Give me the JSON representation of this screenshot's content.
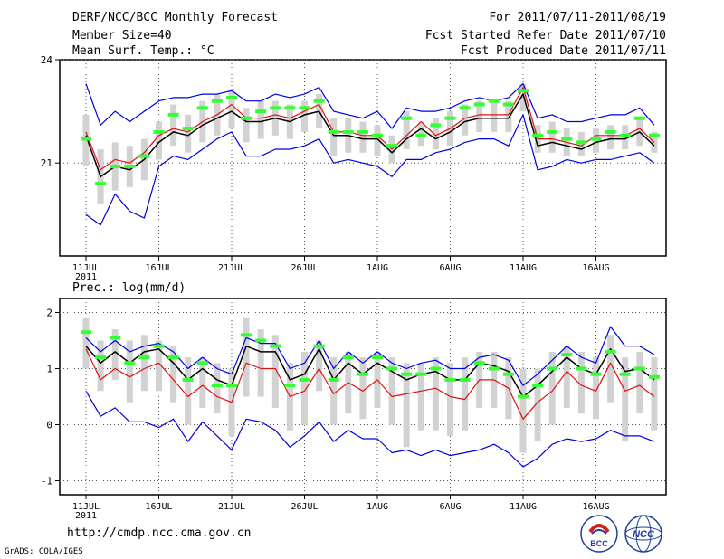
{
  "header": {
    "title": "DERF/NCC/BCC Monthly Forecast",
    "member_size": "Member Size=40",
    "variable": "Mean Surf. Temp.: °C",
    "period": "For 2011/07/11-2011/08/19",
    "started": "Fcst Started Refer Date 2011/07/10",
    "produced": "Fcst Produced Date 2011/07/11"
  },
  "footer": {
    "url": "http://cmdp.ncc.cma.gov.cn",
    "credit": "GrADS: COLA/IGES",
    "logo_left_text": "BCC",
    "logo_right_text": "NCC"
  },
  "colors": {
    "box": "#d2d2d2",
    "green": "#33ff33",
    "red": "#e01010",
    "blue": "#0000e0",
    "black": "#000000",
    "grid": "#555555"
  },
  "chart_data": [
    {
      "type": "line",
      "title": "Mean Surf. Temp.: °C",
      "ylim": [
        18.3,
        24
      ],
      "yticks": [
        21,
        24
      ],
      "xticks": [
        "11JUL",
        "16JUL",
        "21JUL",
        "26JUL",
        "1AUG",
        "6AUG",
        "11AUG",
        "16AUG"
      ],
      "xtick_year": "2011",
      "x": "days 0-39 from 2011-07-11",
      "series": [
        {
          "name": "mean",
          "color": "black",
          "values": [
            21.8,
            20.6,
            20.9,
            20.8,
            21.1,
            21.6,
            21.9,
            21.8,
            22.1,
            22.3,
            22.5,
            22.2,
            22.2,
            22.3,
            22.2,
            22.4,
            22.5,
            21.8,
            21.8,
            21.7,
            21.7,
            21.3,
            21.7,
            22.0,
            21.7,
            21.9,
            22.2,
            22.3,
            22.3,
            22.3,
            23.0,
            21.5,
            21.6,
            21.5,
            21.4,
            21.6,
            21.7,
            21.7,
            21.9,
            21.5
          ]
        },
        {
          "name": "red",
          "color": "red",
          "values": [
            21.9,
            20.8,
            21.1,
            21.0,
            21.3,
            21.8,
            22.0,
            21.9,
            22.2,
            22.4,
            22.7,
            22.3,
            22.3,
            22.4,
            22.3,
            22.5,
            22.7,
            21.9,
            21.9,
            21.8,
            21.8,
            21.4,
            21.8,
            22.2,
            21.8,
            22.0,
            22.3,
            22.4,
            22.4,
            22.4,
            23.2,
            21.7,
            21.7,
            21.6,
            21.5,
            21.8,
            21.8,
            21.8,
            22.0,
            21.6
          ]
        },
        {
          "name": "blue-upper",
          "color": "blue",
          "values": [
            23.3,
            22.1,
            22.5,
            22.2,
            22.5,
            22.8,
            22.9,
            22.9,
            23.0,
            23.0,
            23.1,
            22.8,
            22.8,
            23.0,
            22.9,
            23.0,
            23.2,
            22.5,
            22.4,
            22.3,
            22.5,
            22.0,
            22.6,
            22.5,
            22.5,
            22.6,
            22.8,
            22.9,
            22.8,
            22.9,
            23.3,
            22.3,
            22.4,
            22.2,
            22.2,
            22.3,
            22.4,
            22.4,
            22.6,
            22.1
          ]
        },
        {
          "name": "blue-lower",
          "color": "blue",
          "values": [
            19.5,
            19.2,
            20.1,
            19.6,
            19.4,
            20.9,
            21.2,
            21.1,
            21.4,
            21.7,
            21.9,
            21.2,
            21.2,
            21.4,
            21.4,
            21.5,
            21.7,
            21.0,
            21.1,
            21.0,
            20.9,
            20.6,
            21.1,
            21.1,
            21.3,
            21.4,
            21.6,
            21.7,
            21.7,
            21.5,
            22.4,
            20.8,
            20.9,
            21.1,
            21.0,
            21.1,
            21.1,
            21.2,
            21.3,
            21.0
          ]
        },
        {
          "name": "green-marker",
          "color": "green",
          "values": [
            21.7,
            20.4,
            20.9,
            20.9,
            21.2,
            21.9,
            22.4,
            22.0,
            22.6,
            22.8,
            22.9,
            22.3,
            22.5,
            22.6,
            22.6,
            22.6,
            22.8,
            21.9,
            21.9,
            21.9,
            21.8,
            21.5,
            22.3,
            21.8,
            22.1,
            22.3,
            22.6,
            22.7,
            22.8,
            22.7,
            23.1,
            21.8,
            21.9,
            21.7,
            21.6,
            21.7,
            21.9,
            21.8,
            22.3,
            21.8
          ]
        },
        {
          "name": "box-top",
          "color": "gray",
          "values": [
            22.4,
            21.4,
            21.6,
            21.5,
            21.7,
            22.2,
            22.7,
            22.4,
            22.8,
            23.0,
            23.1,
            22.6,
            22.8,
            22.8,
            22.7,
            22.8,
            23.0,
            22.3,
            22.3,
            22.2,
            22.1,
            21.8,
            22.5,
            22.2,
            22.3,
            22.5,
            22.7,
            22.8,
            22.8,
            22.8,
            23.3,
            22.1,
            22.2,
            22.0,
            21.9,
            22.0,
            22.1,
            22.1,
            22.3,
            21.9
          ]
        },
        {
          "name": "box-bottom",
          "color": "gray",
          "values": [
            20.9,
            19.8,
            20.2,
            20.3,
            20.5,
            21.1,
            21.5,
            21.3,
            21.6,
            21.8,
            22.0,
            21.6,
            21.7,
            21.8,
            21.7,
            21.9,
            22.0,
            21.2,
            21.3,
            21.3,
            21.2,
            21.0,
            21.4,
            21.5,
            21.4,
            21.5,
            21.8,
            21.9,
            21.9,
            21.9,
            22.5,
            21.3,
            21.3,
            21.2,
            21.2,
            21.3,
            21.4,
            21.4,
            21.5,
            21.3
          ]
        }
      ]
    },
    {
      "type": "line",
      "title": "Prec.: log(mm/d)",
      "ylim": [
        -1.25,
        2.25
      ],
      "yticks": [
        -1,
        0,
        1,
        2
      ],
      "xticks": [
        "11JUL",
        "16JUL",
        "21JUL",
        "26JUL",
        "1AUG",
        "6AUG",
        "11AUG",
        "16AUG"
      ],
      "xtick_year": "2011",
      "x": "days 0-39 from 2011-07-11",
      "series": [
        {
          "name": "mean",
          "color": "black",
          "values": [
            1.4,
            1.1,
            1.3,
            1.1,
            1.3,
            1.35,
            1.1,
            0.8,
            1.0,
            0.8,
            0.7,
            1.4,
            1.3,
            1.3,
            0.8,
            0.9,
            1.35,
            0.8,
            1.1,
            0.9,
            1.1,
            0.95,
            0.8,
            0.9,
            0.95,
            0.8,
            0.8,
            1.1,
            1.05,
            0.95,
            0.5,
            0.7,
            0.95,
            1.2,
            1.0,
            0.9,
            1.35,
            0.95,
            1.0,
            0.8
          ]
        },
        {
          "name": "red",
          "color": "red",
          "values": [
            1.35,
            0.8,
            1.0,
            0.85,
            1.0,
            1.1,
            0.8,
            0.5,
            0.7,
            0.5,
            0.4,
            1.1,
            1.0,
            1.0,
            0.5,
            0.6,
            1.0,
            0.55,
            0.75,
            0.6,
            0.8,
            0.5,
            0.55,
            0.6,
            0.65,
            0.5,
            0.45,
            0.8,
            0.8,
            0.65,
            0.1,
            0.4,
            0.6,
            0.95,
            0.7,
            0.6,
            1.1,
            0.6,
            0.7,
            0.5
          ]
        },
        {
          "name": "blue-upper",
          "color": "blue",
          "values": [
            1.55,
            1.3,
            1.5,
            1.3,
            1.4,
            1.45,
            1.3,
            1.0,
            1.2,
            1.0,
            0.9,
            1.55,
            1.45,
            1.45,
            1.0,
            1.1,
            1.5,
            1.0,
            1.3,
            1.1,
            1.3,
            1.1,
            1.0,
            1.1,
            1.15,
            1.0,
            1.0,
            1.2,
            1.25,
            1.15,
            0.7,
            0.9,
            1.15,
            1.4,
            1.2,
            1.1,
            1.75,
            1.4,
            1.4,
            1.25
          ]
        },
        {
          "name": "blue-lower",
          "color": "blue",
          "values": [
            0.6,
            0.15,
            0.3,
            0.05,
            0.05,
            -0.05,
            0.1,
            -0.3,
            0.05,
            -0.2,
            -0.45,
            0.1,
            0.05,
            -0.1,
            -0.4,
            -0.2,
            0.05,
            -0.3,
            -0.1,
            -0.25,
            -0.25,
            -0.5,
            -0.45,
            -0.55,
            -0.45,
            -0.55,
            -0.5,
            -0.45,
            -0.35,
            -0.5,
            -0.75,
            -0.6,
            -0.35,
            -0.25,
            -0.3,
            -0.25,
            -0.1,
            -0.2,
            -0.2,
            -0.3
          ]
        },
        {
          "name": "green-marker",
          "color": "green",
          "values": [
            1.65,
            1.2,
            1.55,
            1.1,
            1.2,
            1.4,
            1.2,
            0.8,
            1.1,
            0.7,
            0.7,
            1.6,
            1.5,
            1.4,
            0.7,
            0.8,
            1.4,
            0.8,
            1.2,
            0.9,
            1.2,
            1.0,
            0.9,
            0.9,
            1.0,
            0.8,
            0.8,
            1.1,
            1.0,
            0.9,
            0.5,
            0.7,
            1.0,
            1.25,
            1.0,
            0.9,
            1.3,
            0.9,
            1.0,
            0.85
          ]
        },
        {
          "name": "box-top",
          "color": "gray",
          "values": [
            1.9,
            1.5,
            1.7,
            1.5,
            1.6,
            1.5,
            1.4,
            1.2,
            1.2,
            1.1,
            1.0,
            1.9,
            1.7,
            1.6,
            1.1,
            1.3,
            1.5,
            1.2,
            1.3,
            1.2,
            1.3,
            1.2,
            1.1,
            1.1,
            1.2,
            1.1,
            1.2,
            1.3,
            1.3,
            1.2,
            1.0,
            1.0,
            1.3,
            1.4,
            1.3,
            1.2,
            1.6,
            1.2,
            1.3,
            1.2
          ]
        },
        {
          "name": "box-bottom",
          "color": "gray",
          "values": [
            1.0,
            0.6,
            0.8,
            0.4,
            0.6,
            0.6,
            0.4,
            0.0,
            0.3,
            0.2,
            -0.2,
            0.5,
            0.5,
            0.3,
            -0.1,
            0.0,
            0.6,
            0.0,
            0.2,
            0.1,
            0.3,
            0.0,
            -0.4,
            -0.1,
            -0.1,
            -0.2,
            -0.1,
            0.3,
            0.3,
            0.1,
            -0.5,
            -0.3,
            0.0,
            0.3,
            0.2,
            0.1,
            0.4,
            -0.3,
            0.2,
            -0.1
          ]
        }
      ]
    }
  ]
}
